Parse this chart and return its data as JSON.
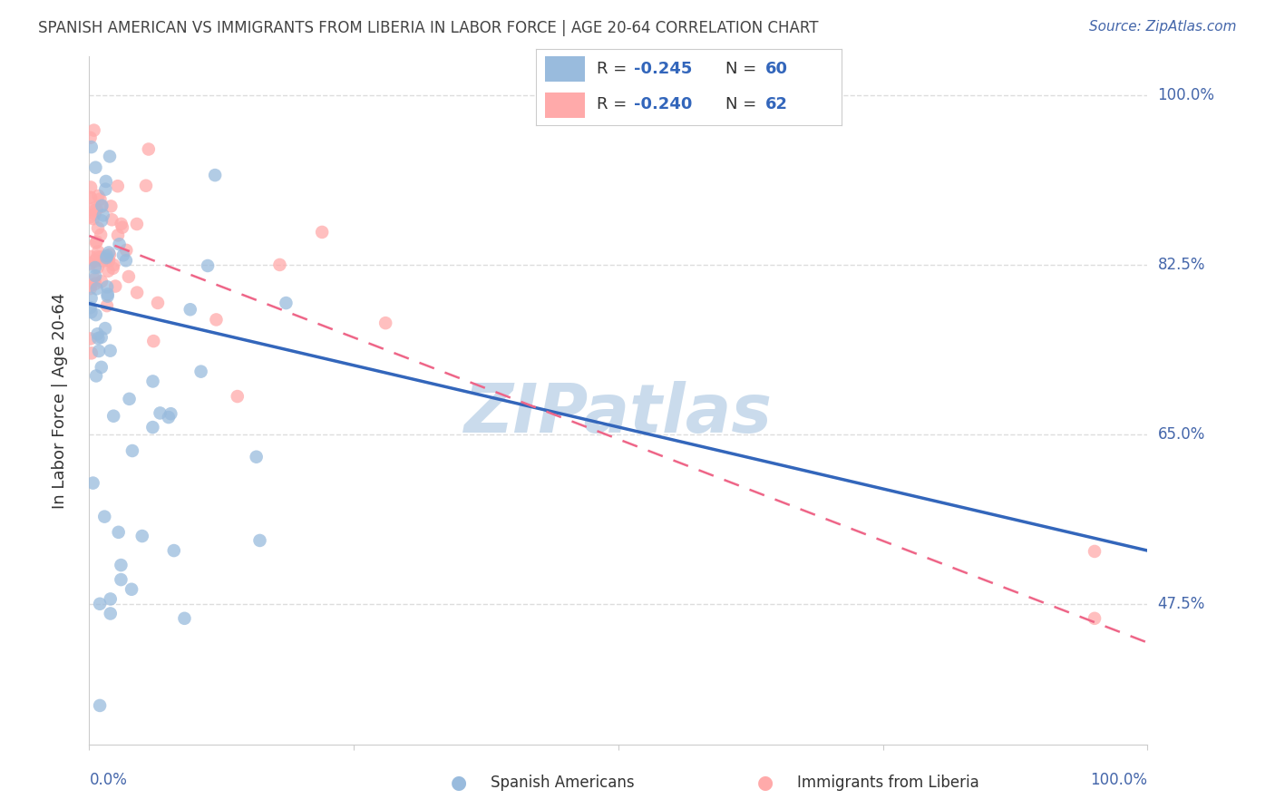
{
  "title": "SPANISH AMERICAN VS IMMIGRANTS FROM LIBERIA IN LABOR FORCE | AGE 20-64 CORRELATION CHART",
  "source": "Source: ZipAtlas.com",
  "ylabel": "In Labor Force | Age 20-64",
  "ytick_vals": [
    1.0,
    0.825,
    0.65,
    0.475
  ],
  "ytick_labels": [
    "100.0%",
    "82.5%",
    "65.0%",
    "47.5%"
  ],
  "legend_name1": "Spanish Americans",
  "legend_name2": "Immigrants from Liberia",
  "blue_scatter_color": "#99BBDD",
  "pink_scatter_color": "#FFAAAA",
  "blue_line_color": "#3366BB",
  "pink_line_color": "#EE6688",
  "watermark": "ZIPatlas",
  "watermark_color": "#C5D8EA",
  "title_color": "#444444",
  "source_color": "#4466AA",
  "axis_label_color": "#4466AA",
  "legend_text_color": "#333333",
  "legend_value_color": "#3366BB",
  "R1": "-0.245",
  "N1": "60",
  "R2": "-0.240",
  "N2": "62",
  "blue_line_intercept": 0.785,
  "blue_line_slope": -0.255,
  "pink_line_intercept": 0.855,
  "pink_line_slope": -0.42,
  "xlim": [
    0.0,
    1.0
  ],
  "ylim": [
    0.33,
    1.04
  ],
  "grid_color": "#DDDDDD",
  "spine_color": "#CCCCCC",
  "legend_border_color": "#CCCCCC"
}
